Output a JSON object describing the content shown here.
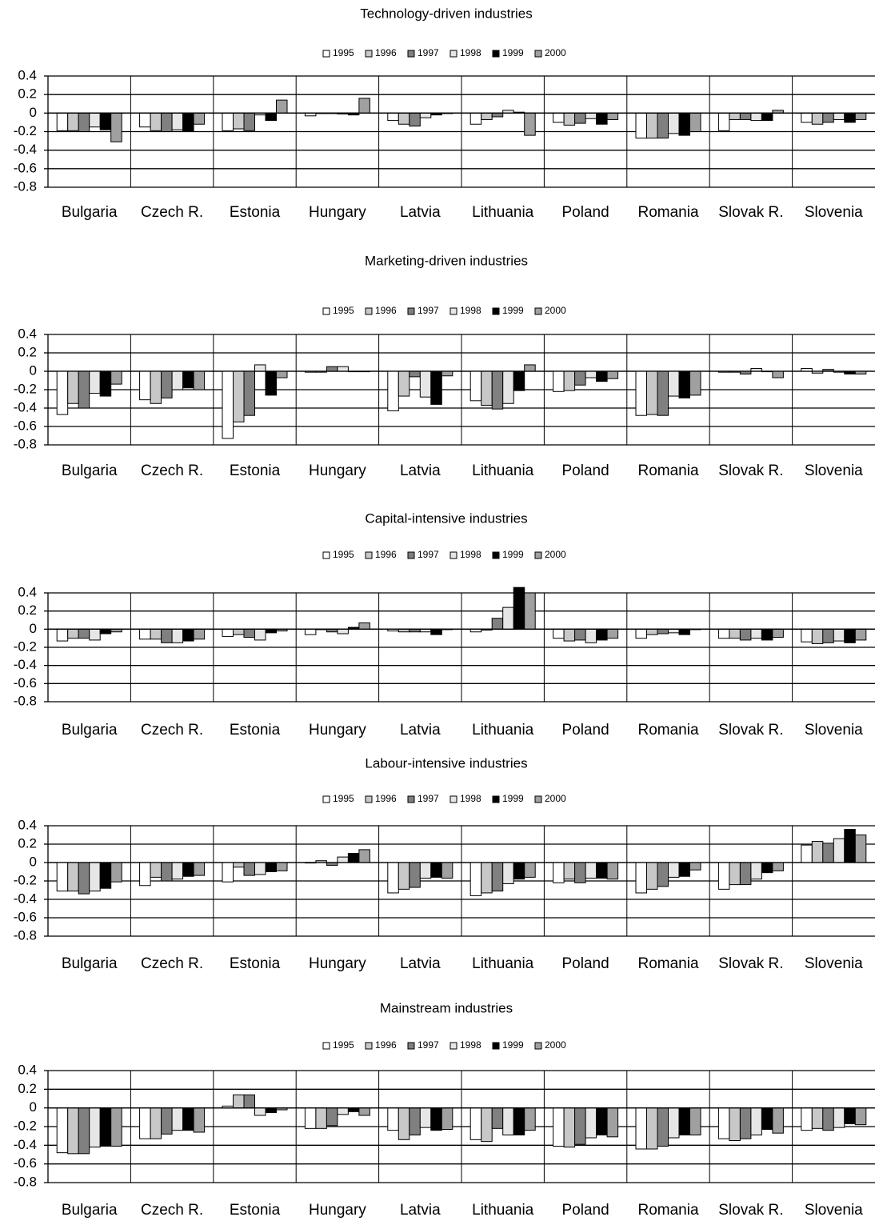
{
  "colors": {
    "1995": "#ffffff",
    "1996": "#c8c8c8",
    "1997": "#808080",
    "1998": "#e6e6e6",
    "1999": "#000000",
    "2000": "#a0a0a0",
    "axis": "#000000"
  },
  "chart_data": [
    {
      "type": "bar",
      "title": "Technology-driven industries",
      "legend": "top-center",
      "grid": true,
      "ylim": [
        -0.8,
        0.4
      ],
      "yticks": [
        "0.4",
        "0.2",
        "0",
        "-0.2",
        "-0.4",
        "-0.6",
        "-0.8"
      ],
      "categories": [
        "Bulgaria",
        "Czech R.",
        "Estonia",
        "Hungary",
        "Latvia",
        "Lithuania",
        "Poland",
        "Romania",
        "Slovak R.",
        "Slovenia"
      ],
      "series": [
        {
          "name": "1995",
          "values": [
            -0.19,
            -0.15,
            -0.19,
            -0.03,
            -0.08,
            -0.12,
            -0.1,
            -0.27,
            -0.19,
            -0.1
          ]
        },
        {
          "name": "1996",
          "values": [
            -0.19,
            -0.19,
            -0.17,
            0.0,
            -0.12,
            -0.07,
            -0.13,
            -0.27,
            -0.07,
            -0.12
          ]
        },
        {
          "name": "1997",
          "values": [
            -0.2,
            -0.2,
            -0.19,
            0.0,
            -0.14,
            -0.04,
            -0.11,
            -0.27,
            -0.07,
            -0.1
          ]
        },
        {
          "name": "1998",
          "values": [
            -0.15,
            -0.18,
            -0.02,
            -0.01,
            -0.05,
            0.03,
            -0.06,
            -0.22,
            -0.08,
            -0.07
          ]
        },
        {
          "name": "1999",
          "values": [
            -0.18,
            -0.2,
            -0.08,
            -0.02,
            -0.02,
            0.01,
            -0.12,
            -0.24,
            -0.08,
            -0.1
          ]
        },
        {
          "name": "2000",
          "values": [
            -0.31,
            -0.12,
            0.14,
            0.16,
            0.0,
            -0.24,
            -0.07,
            -0.2,
            0.03,
            -0.07
          ]
        }
      ]
    },
    {
      "type": "bar",
      "title": "Marketing-driven industries",
      "legend": "top-center",
      "grid": true,
      "ylim": [
        -0.8,
        0.4
      ],
      "yticks": [
        "0.4",
        "0.2",
        "0",
        "-0.2",
        "-0.4",
        "-0.6",
        "-0.8"
      ],
      "categories": [
        "Bulgaria",
        "Czech R.",
        "Estonia",
        "Hungary",
        "Latvia",
        "Lithuania",
        "Poland",
        "Romania",
        "Slovak R.",
        "Slovenia"
      ],
      "series": [
        {
          "name": "1995",
          "values": [
            -0.47,
            -0.31,
            -0.73,
            -0.01,
            -0.43,
            -0.32,
            -0.22,
            -0.48,
            -0.01,
            0.03
          ]
        },
        {
          "name": "1996",
          "values": [
            -0.35,
            -0.35,
            -0.55,
            -0.01,
            -0.27,
            -0.37,
            -0.21,
            -0.47,
            -0.01,
            -0.02
          ]
        },
        {
          "name": "1997",
          "values": [
            -0.4,
            -0.29,
            -0.48,
            0.05,
            -0.06,
            -0.41,
            -0.15,
            -0.48,
            -0.03,
            0.02
          ]
        },
        {
          "name": "1998",
          "values": [
            -0.24,
            -0.2,
            0.07,
            0.05,
            -0.28,
            -0.35,
            -0.07,
            -0.27,
            0.03,
            -0.01
          ]
        },
        {
          "name": "1999",
          "values": [
            -0.27,
            -0.18,
            -0.26,
            0.0,
            -0.36,
            -0.21,
            -0.11,
            -0.29,
            0.0,
            -0.03
          ]
        },
        {
          "name": "2000",
          "values": [
            -0.14,
            -0.2,
            -0.07,
            0.0,
            -0.05,
            0.07,
            -0.08,
            -0.26,
            -0.07,
            -0.03
          ]
        }
      ]
    },
    {
      "type": "bar",
      "title": "Capital-intensive industries",
      "legend": "top-center",
      "grid": true,
      "ylim": [
        -0.8,
        0.4
      ],
      "yticks": [
        "0.4",
        "0.2",
        "0",
        "-0.2",
        "-0.4",
        "-0.6",
        "-0.8"
      ],
      "categories": [
        "Bulgaria",
        "Czech R.",
        "Estonia",
        "Hungary",
        "Latvia",
        "Lithuania",
        "Poland",
        "Romania",
        "Slovak R.",
        "Slovenia"
      ],
      "series": [
        {
          "name": "1995",
          "values": [
            -0.13,
            -0.11,
            -0.08,
            -0.06,
            -0.02,
            -0.03,
            -0.1,
            -0.1,
            -0.1,
            -0.14
          ]
        },
        {
          "name": "1996",
          "values": [
            -0.1,
            -0.11,
            -0.06,
            0.0,
            -0.03,
            -0.01,
            -0.13,
            -0.06,
            -0.1,
            -0.16
          ]
        },
        {
          "name": "1997",
          "values": [
            -0.1,
            -0.15,
            -0.09,
            -0.03,
            -0.03,
            0.12,
            -0.12,
            -0.05,
            -0.12,
            -0.15
          ]
        },
        {
          "name": "1998",
          "values": [
            -0.12,
            -0.15,
            -0.12,
            -0.05,
            -0.03,
            0.24,
            -0.15,
            -0.04,
            -0.1,
            -0.13
          ]
        },
        {
          "name": "1999",
          "values": [
            -0.05,
            -0.13,
            -0.04,
            0.02,
            -0.06,
            0.46,
            -0.12,
            -0.06,
            -0.12,
            -0.15
          ]
        },
        {
          "name": "2000",
          "values": [
            -0.03,
            -0.11,
            -0.02,
            0.07,
            0.0,
            0.4,
            -0.1,
            0.0,
            -0.09,
            -0.12
          ]
        }
      ]
    },
    {
      "type": "bar",
      "title": "Labour-intensive industries",
      "legend": "top-center",
      "grid": true,
      "ylim": [
        -0.8,
        0.4
      ],
      "yticks": [
        "0.4",
        "0.2",
        "0",
        "-0.2",
        "-0.4",
        "-0.6",
        "-0.8"
      ],
      "categories": [
        "Bulgaria",
        "Czech R.",
        "Estonia",
        "Hungary",
        "Latvia",
        "Lithuania",
        "Poland",
        "Romania",
        "Slovak R.",
        "Slovenia"
      ],
      "series": [
        {
          "name": "1995",
          "values": [
            -0.31,
            -0.25,
            -0.21,
            0.0,
            -0.33,
            -0.36,
            -0.22,
            -0.33,
            -0.29,
            0.19
          ]
        },
        {
          "name": "1996",
          "values": [
            -0.31,
            -0.16,
            -0.05,
            0.02,
            -0.29,
            -0.33,
            -0.18,
            -0.29,
            -0.24,
            0.23
          ]
        },
        {
          "name": "1997",
          "values": [
            -0.34,
            -0.2,
            -0.14,
            -0.03,
            -0.27,
            -0.31,
            -0.22,
            -0.26,
            -0.24,
            0.21
          ]
        },
        {
          "name": "1998",
          "values": [
            -0.31,
            -0.18,
            -0.13,
            0.06,
            -0.17,
            -0.23,
            -0.17,
            -0.16,
            -0.18,
            0.26
          ]
        },
        {
          "name": "1999",
          "values": [
            -0.28,
            -0.15,
            -0.1,
            0.1,
            -0.16,
            -0.18,
            -0.17,
            -0.15,
            -0.11,
            0.36
          ]
        },
        {
          "name": "2000",
          "values": [
            -0.21,
            -0.14,
            -0.09,
            0.14,
            -0.17,
            -0.16,
            -0.18,
            -0.08,
            -0.09,
            0.3
          ]
        }
      ]
    },
    {
      "type": "bar",
      "title": "Mainstream industries",
      "legend": "top-center",
      "grid": true,
      "ylim": [
        -0.8,
        0.4
      ],
      "yticks": [
        "0.4",
        "0.2",
        "0",
        "-0.2",
        "-0.4",
        "-0.6",
        "-0.8"
      ],
      "categories": [
        "Bulgaria",
        "Czech R.",
        "Estonia",
        "Hungary",
        "Latvia",
        "Lithuania",
        "Poland",
        "Romania",
        "Slovak R.",
        "Slovenia"
      ],
      "series": [
        {
          "name": "1995",
          "values": [
            -0.48,
            -0.33,
            0.02,
            -0.22,
            -0.24,
            -0.34,
            -0.41,
            -0.44,
            -0.33,
            -0.24
          ]
        },
        {
          "name": "1996",
          "values": [
            -0.49,
            -0.33,
            0.14,
            -0.22,
            -0.34,
            -0.36,
            -0.42,
            -0.44,
            -0.35,
            -0.22
          ]
        },
        {
          "name": "1997",
          "values": [
            -0.49,
            -0.28,
            0.14,
            -0.19,
            -0.29,
            -0.22,
            -0.39,
            -0.41,
            -0.33,
            -0.24
          ]
        },
        {
          "name": "1998",
          "values": [
            -0.42,
            -0.24,
            -0.08,
            -0.07,
            -0.21,
            -0.29,
            -0.32,
            -0.32,
            -0.29,
            -0.21
          ]
        },
        {
          "name": "1999",
          "values": [
            -0.41,
            -0.24,
            -0.05,
            -0.04,
            -0.24,
            -0.29,
            -0.29,
            -0.29,
            -0.23,
            -0.17
          ]
        },
        {
          "name": "2000",
          "values": [
            -0.41,
            -0.26,
            -0.02,
            -0.08,
            -0.23,
            -0.24,
            -0.31,
            -0.29,
            -0.27,
            -0.18
          ]
        }
      ]
    }
  ]
}
